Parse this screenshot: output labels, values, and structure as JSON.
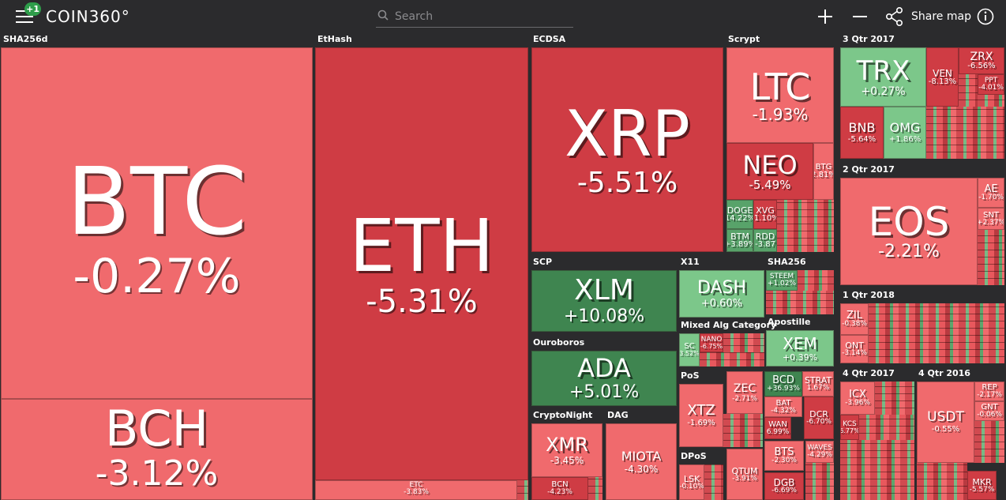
{
  "header": {
    "badge": "+1",
    "logo": "COIN360°",
    "search_placeholder": "Search",
    "share_label": "Share map"
  },
  "icons": {
    "menu": "menu-icon",
    "search": "search-icon",
    "zoom_in": "plus-icon",
    "zoom_out": "minus-icon",
    "share": "share-icon",
    "info": "info-icon"
  },
  "colors": {
    "background": "#2b2b2d",
    "red_light": "#f06a6d",
    "red": "#e8585d",
    "red_dark": "#cf3c44",
    "green_light": "#7cc78a",
    "green": "#58a36a",
    "green_dark": "#3f8550"
  },
  "regions": {
    "sha256d": "SHA256d",
    "ethash": "EtHash",
    "ecdsa": "ECDSA",
    "scrypt": "Scrypt",
    "q3_2017": "3 Qtr 2017",
    "q2_2017": "2 Qtr 2017",
    "q1_2018": "1 Qtr 2018",
    "q4_2017": "4 Qtr 2017",
    "q4_2016": "4 Qtr 2016",
    "scp": "SCP",
    "x11": "X11",
    "sha256": "SHA256",
    "mixed": "Mixed Alg Category",
    "apostille": "Apostille",
    "ouroboros": "Ouroboros",
    "pos": "PoS",
    "cryptonight": "CryptoNight",
    "dag": "DAG",
    "dpos": "DPoS"
  },
  "coins": {
    "btc": {
      "sym": "BTC",
      "pct": "-0.27%"
    },
    "bch": {
      "sym": "BCH",
      "pct": "-3.12%"
    },
    "eth": {
      "sym": "ETH",
      "pct": "-5.31%"
    },
    "etc": {
      "sym": "ETC",
      "pct": "-3.83%"
    },
    "xrp": {
      "sym": "XRP",
      "pct": "-5.51%"
    },
    "ltc": {
      "sym": "LTC",
      "pct": "-1.93%"
    },
    "neo": {
      "sym": "NEO",
      "pct": "-5.49%"
    },
    "btg": {
      "sym": "BTG",
      "pct": "2.81%"
    },
    "doge": {
      "sym": "DOGE",
      "pct": "14.22%"
    },
    "xvg": {
      "sym": "XVG",
      "pct": "-1.10%"
    },
    "btm": {
      "sym": "BTM",
      "pct": "+3.89%"
    },
    "rdd": {
      "sym": "RDD",
      "pct": "-3.87"
    },
    "trx": {
      "sym": "TRX",
      "pct": "+0.27%"
    },
    "ven": {
      "sym": "VEN",
      "pct": "-8.13%"
    },
    "zrx": {
      "sym": "ZRX",
      "pct": "-6.56%"
    },
    "ppt": {
      "sym": "PPT",
      "pct": "-4.01%"
    },
    "bnb": {
      "sym": "BNB",
      "pct": "-5.64%"
    },
    "omg": {
      "sym": "OMG",
      "pct": "+1.86%"
    },
    "eos": {
      "sym": "EOS",
      "pct": "-2.21%"
    },
    "ae": {
      "sym": "AE",
      "pct": "-1.70%"
    },
    "snt": {
      "sym": "SNT",
      "pct": "+2.37%"
    },
    "xlm": {
      "sym": "XLM",
      "pct": "+10.08%"
    },
    "dash": {
      "sym": "DASH",
      "pct": "+0.60%"
    },
    "steem": {
      "sym": "STEEM",
      "pct": "+1.02%"
    },
    "nano": {
      "sym": "NANO",
      "pct": "-6.75%"
    },
    "sc": {
      "sym": "SC",
      "pct": "3.52%"
    },
    "xem": {
      "sym": "XEM",
      "pct": "+0.39%"
    },
    "ada": {
      "sym": "ADA",
      "pct": "+5.01%"
    },
    "xtz": {
      "sym": "XTZ",
      "pct": "-1.69%"
    },
    "zec": {
      "sym": "ZEC",
      "pct": "-2.71%"
    },
    "bcd": {
      "sym": "BCD",
      "pct": "+36.93%"
    },
    "strat": {
      "sym": "STRAT",
      "pct": "1.67%"
    },
    "bat": {
      "sym": "BAT",
      "pct": "-4.32%"
    },
    "wan": {
      "sym": "WAN",
      "pct": "6.99%"
    },
    "dcr": {
      "sym": "DCR",
      "pct": "-6.70%"
    },
    "bts": {
      "sym": "BTS",
      "pct": "-2.30%"
    },
    "waves": {
      "sym": "WAVES",
      "pct": "-4.29%"
    },
    "dgb": {
      "sym": "DGB",
      "pct": "-6.69%"
    },
    "qtum": {
      "sym": "QTUM",
      "pct": "-3.91%"
    },
    "lsk": {
      "sym": "LSK",
      "pct": "-0.10%"
    },
    "xmr": {
      "sym": "XMR",
      "pct": "-3.45%"
    },
    "bcn": {
      "sym": "BCN",
      "pct": "-4.23%"
    },
    "miota": {
      "sym": "MIOTA",
      "pct": "-4.30%"
    },
    "zil": {
      "sym": "ZIL",
      "pct": "-0.38%"
    },
    "ont": {
      "sym": "ONT",
      "pct": "-3.14%"
    },
    "icx": {
      "sym": "ICX",
      "pct": "-3.96%"
    },
    "kcs": {
      "sym": "KCS",
      "pct": "6.77%"
    },
    "usdt": {
      "sym": "USDT",
      "pct": "-0.55%"
    },
    "rep": {
      "sym": "REP",
      "pct": "-2.17%"
    },
    "gnt": {
      "sym": "GNT",
      "pct": "-0.06%"
    },
    "mkr": {
      "sym": "MKR",
      "pct": "-5.57%"
    }
  }
}
